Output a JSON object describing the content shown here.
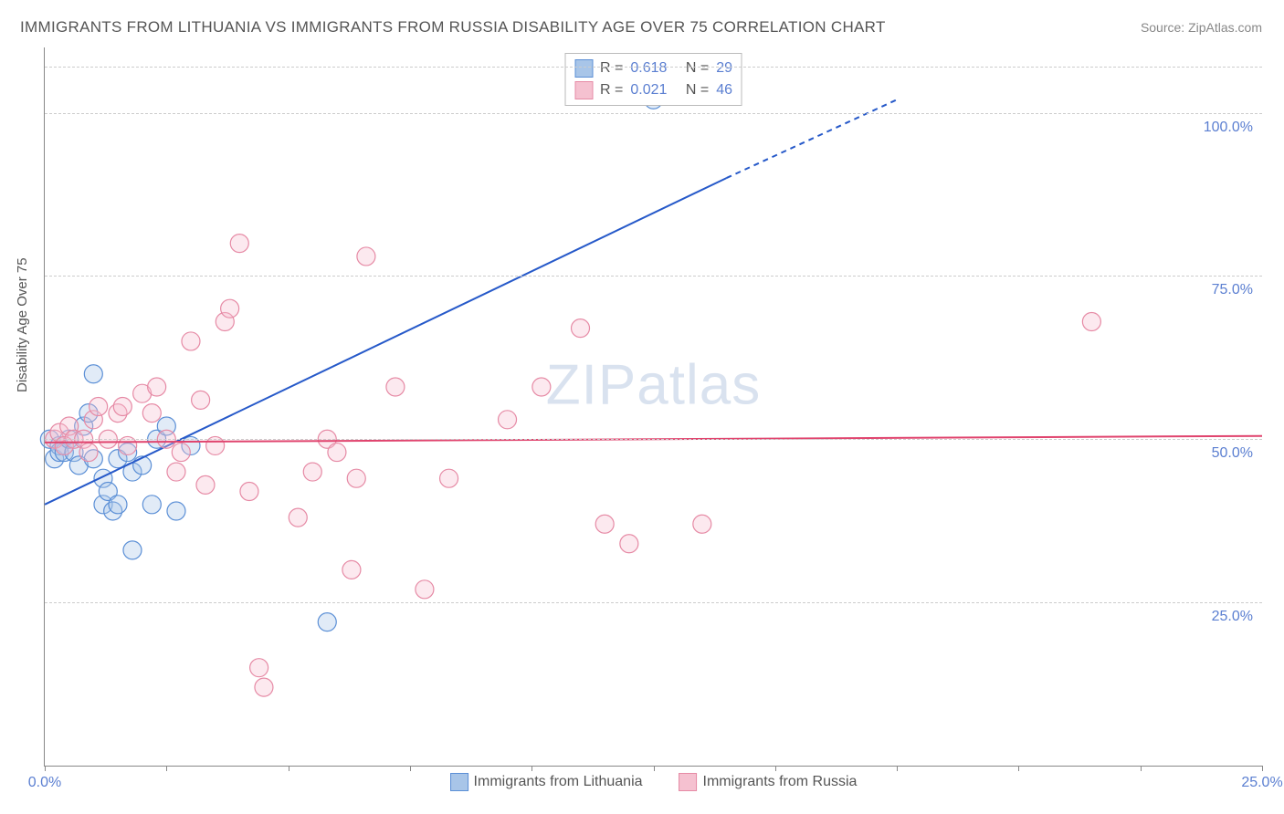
{
  "title": "IMMIGRANTS FROM LITHUANIA VS IMMIGRANTS FROM RUSSIA DISABILITY AGE OVER 75 CORRELATION CHART",
  "source": "Source: ZipAtlas.com",
  "ylabel": "Disability Age Over 75",
  "watermark_bold": "ZIP",
  "watermark_rest": "atlas",
  "chart": {
    "type": "scatter",
    "xlim": [
      0,
      25
    ],
    "ylim": [
      0,
      110
    ],
    "xtick_positions": [
      0,
      2.5,
      5,
      7.5,
      10,
      12.5,
      15,
      17.5,
      20,
      22.5,
      25
    ],
    "xtick_labels": {
      "0": "0.0%",
      "25": "25.0%"
    },
    "ytick_positions": [
      25,
      50,
      75,
      100,
      107
    ],
    "ytick_labels": {
      "25": "25.0%",
      "50": "50.0%",
      "75": "75.0%",
      "100": "100.0%"
    },
    "grid_color": "#cccccc",
    "background_color": "#ffffff",
    "axis_color": "#888888",
    "marker_radius": 10,
    "marker_opacity": 0.35,
    "series": [
      {
        "name": "Immigrants from Lithuania",
        "color": "#5b8fd6",
        "fill": "#a8c5e8",
        "stroke": "#5b8fd6",
        "R": "0.618",
        "N": "29",
        "trend": {
          "x1": 0,
          "y1": 40,
          "x2": 14,
          "y2": 90,
          "dash_from_x": 14,
          "dash_to_x": 17.5,
          "dash_to_y": 102,
          "color": "#2659c9",
          "width": 2
        },
        "points": [
          [
            0.1,
            50
          ],
          [
            0.2,
            47
          ],
          [
            0.3,
            49
          ],
          [
            0.3,
            48
          ],
          [
            0.4,
            48
          ],
          [
            0.5,
            50
          ],
          [
            0.6,
            48
          ],
          [
            0.7,
            46
          ],
          [
            0.8,
            52
          ],
          [
            0.9,
            54
          ],
          [
            1.0,
            60
          ],
          [
            1.0,
            47
          ],
          [
            1.2,
            40
          ],
          [
            1.2,
            44
          ],
          [
            1.3,
            42
          ],
          [
            1.4,
            39
          ],
          [
            1.5,
            40
          ],
          [
            1.5,
            47
          ],
          [
            1.7,
            48
          ],
          [
            1.8,
            45
          ],
          [
            2.0,
            46
          ],
          [
            2.2,
            40
          ],
          [
            2.3,
            50
          ],
          [
            2.5,
            52
          ],
          [
            2.7,
            39
          ],
          [
            3.0,
            49
          ],
          [
            1.8,
            33
          ],
          [
            5.8,
            22
          ],
          [
            12.5,
            102
          ]
        ]
      },
      {
        "name": "Immigrants from Russia",
        "color": "#e68aa5",
        "fill": "#f5c1d0",
        "stroke": "#e68aa5",
        "R": "0.021",
        "N": "46",
        "trend": {
          "x1": 0,
          "y1": 49.5,
          "x2": 25,
          "y2": 50.5,
          "color": "#e0446e",
          "width": 2
        },
        "points": [
          [
            0.2,
            50
          ],
          [
            0.3,
            51
          ],
          [
            0.4,
            49
          ],
          [
            0.5,
            52
          ],
          [
            0.6,
            50
          ],
          [
            0.8,
            50
          ],
          [
            0.9,
            48
          ],
          [
            1.0,
            53
          ],
          [
            1.1,
            55
          ],
          [
            1.3,
            50
          ],
          [
            1.5,
            54
          ],
          [
            1.6,
            55
          ],
          [
            1.7,
            49
          ],
          [
            2.0,
            57
          ],
          [
            2.2,
            54
          ],
          [
            2.3,
            58
          ],
          [
            2.5,
            50
          ],
          [
            2.7,
            45
          ],
          [
            2.8,
            48
          ],
          [
            3.0,
            65
          ],
          [
            3.2,
            56
          ],
          [
            3.3,
            43
          ],
          [
            3.5,
            49
          ],
          [
            3.7,
            68
          ],
          [
            3.8,
            70
          ],
          [
            4.0,
            80
          ],
          [
            4.2,
            42
          ],
          [
            4.4,
            15
          ],
          [
            4.5,
            12
          ],
          [
            5.2,
            38
          ],
          [
            5.5,
            45
          ],
          [
            5.8,
            50
          ],
          [
            6.0,
            48
          ],
          [
            6.3,
            30
          ],
          [
            6.4,
            44
          ],
          [
            6.6,
            78
          ],
          [
            7.2,
            58
          ],
          [
            7.8,
            27
          ],
          [
            8.3,
            44
          ],
          [
            9.5,
            53
          ],
          [
            10.2,
            58
          ],
          [
            11.0,
            67
          ],
          [
            11.5,
            37
          ],
          [
            12.0,
            34
          ],
          [
            13.5,
            37
          ],
          [
            21.5,
            68
          ]
        ]
      }
    ]
  },
  "legend_top": {
    "R_label": "R =",
    "N_label": "N ="
  },
  "legend_bottom": {
    "items": [
      {
        "label": "Immigrants from Lithuania",
        "fill": "#a8c5e8",
        "stroke": "#5b8fd6"
      },
      {
        "label": "Immigrants from Russia",
        "fill": "#f5c1d0",
        "stroke": "#e68aa5"
      }
    ]
  }
}
